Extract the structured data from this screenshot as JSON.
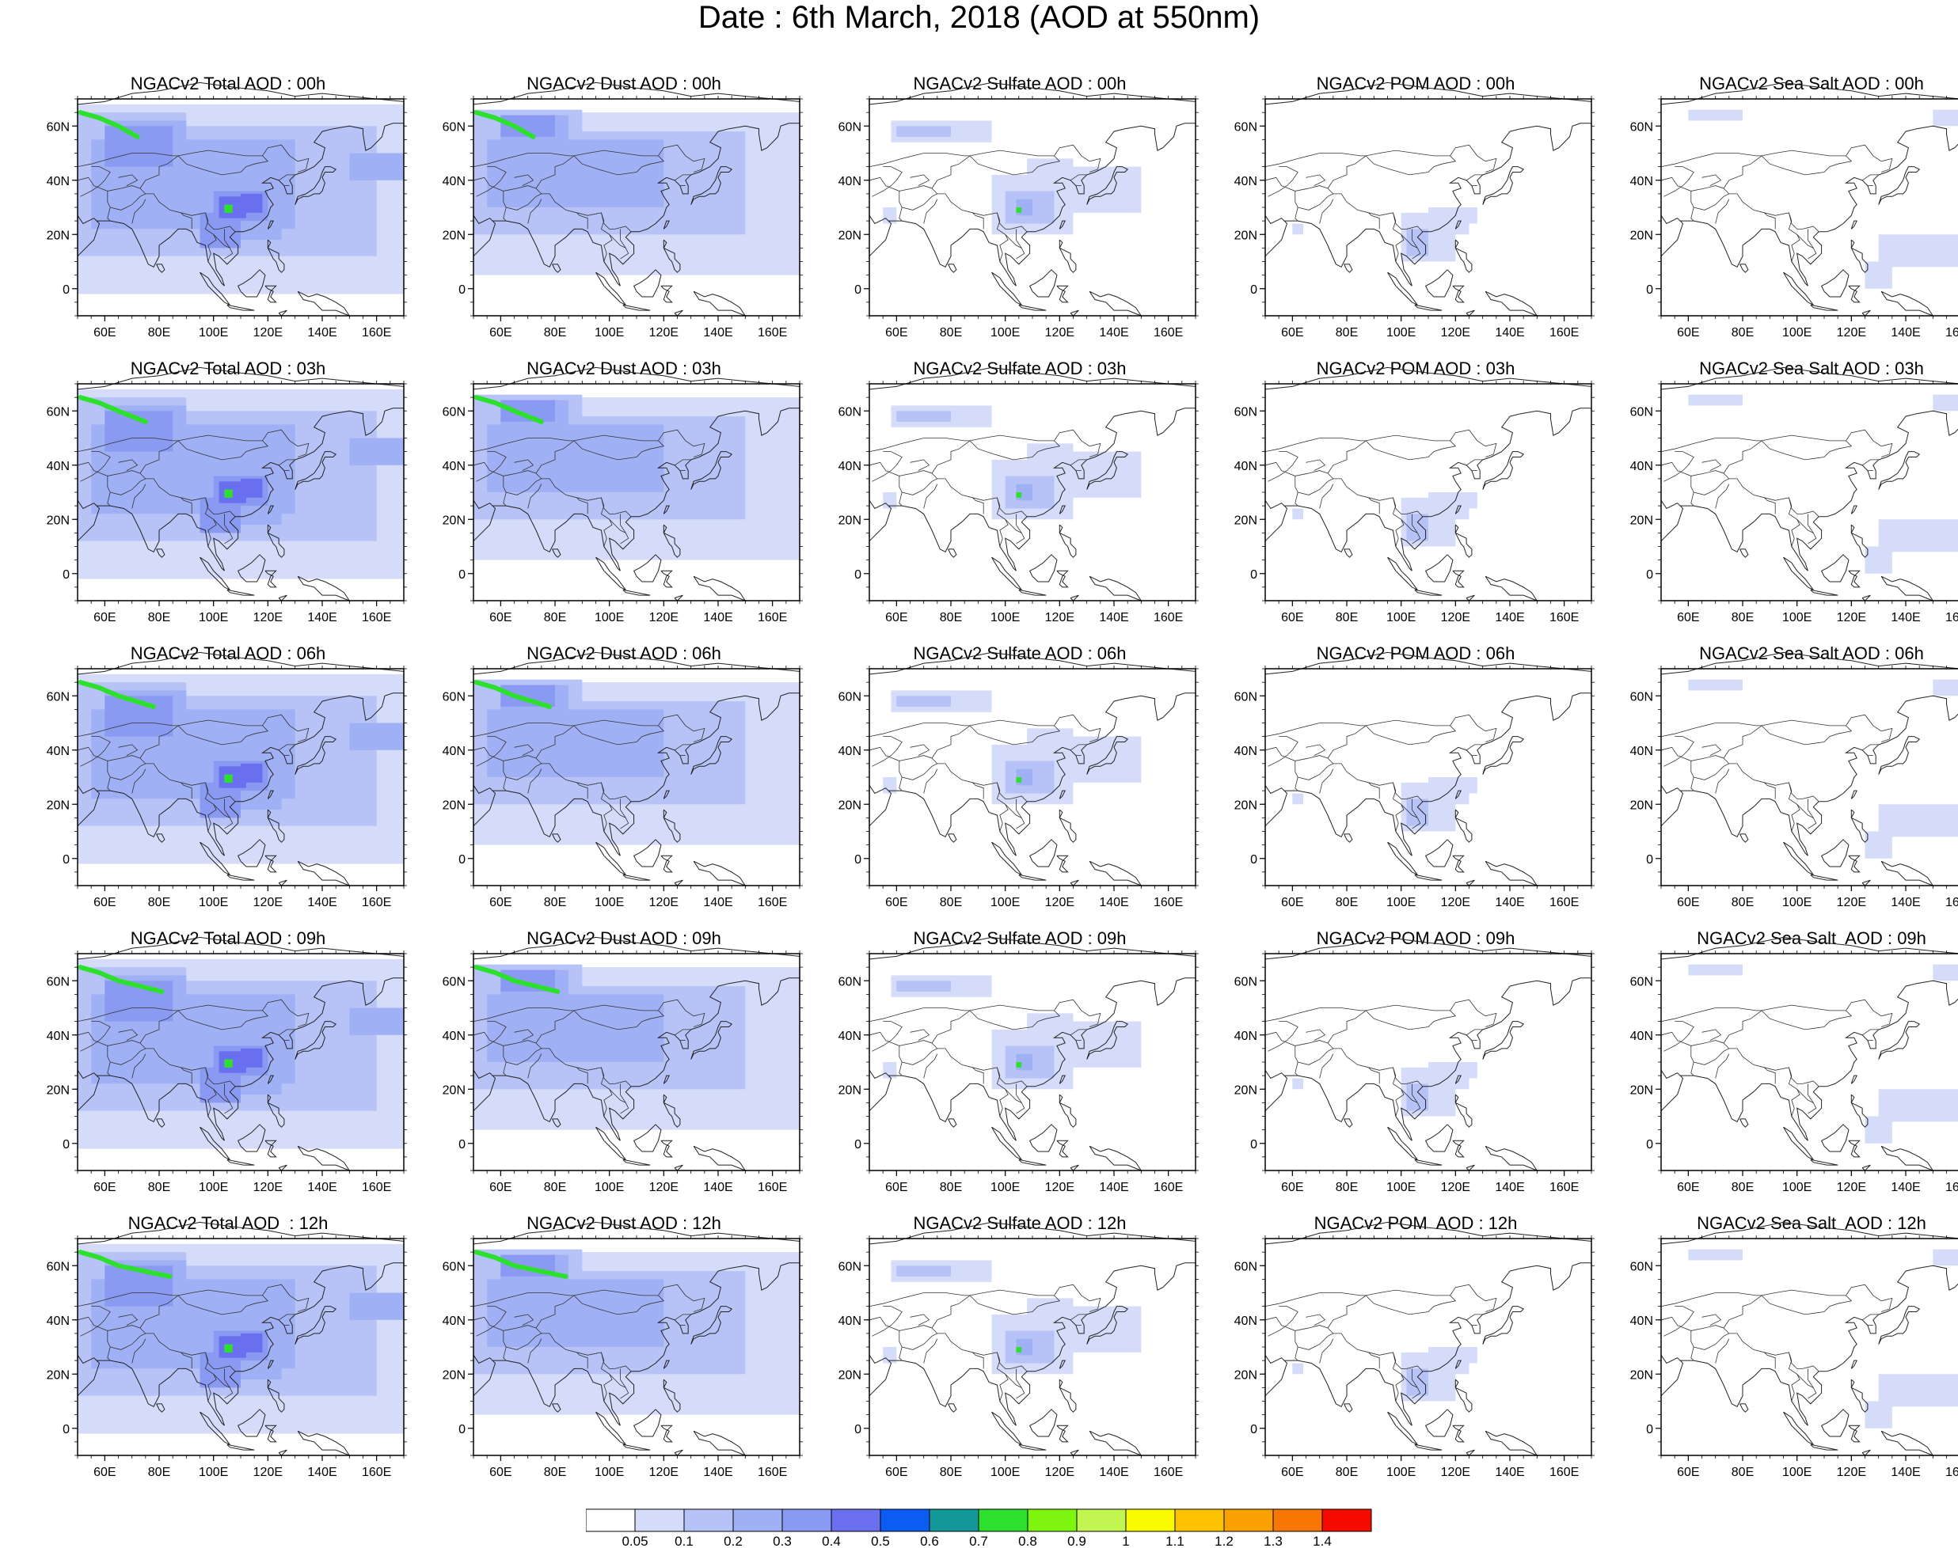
{
  "title": "Date : 6th March, 2018 (AOD at 550nm)",
  "lon_ticks": [
    "60E",
    "80E",
    "100E",
    "120E",
    "140E",
    "160E"
  ],
  "lat_ticks": [
    "60N",
    "40N",
    "20N",
    "0"
  ],
  "map_extent": {
    "lon": [
      50,
      170
    ],
    "lat": [
      -10,
      70
    ]
  },
  "rows": [
    {
      "hour": "00h",
      "titles": [
        "NGACv2 Total AOD : 00h",
        "NGACv2 Dust AOD : 00h",
        "NGACv2 Sulfate AOD : 00h",
        "NGACv2 POM AOD : 00h",
        "NGACv2 Sea Salt AOD : 00h"
      ]
    },
    {
      "hour": "03h",
      "titles": [
        "NGACv2 Total AOD : 03h",
        "NGACv2 Dust AOD : 03h",
        "NGACv2 Sulfate AOD : 03h",
        "NGACv2 POM AOD : 03h",
        "NGACv2 Sea Salt AOD : 03h"
      ]
    },
    {
      "hour": "06h",
      "titles": [
        "NGACv2 Total AOD : 06h",
        "NGACv2 Dust AOD : 06h",
        "NGACv2 Sulfate AOD : 06h",
        "NGACv2 POM AOD : 06h",
        "NGACv2 Sea Salt AOD : 06h"
      ]
    },
    {
      "hour": "09h",
      "titles": [
        "NGACv2 Total AOD : 09h",
        "NGACv2 Dust AOD : 09h",
        "NGACv2 Sulfate AOD : 09h",
        "NGACv2 POM AOD : 09h",
        "NGACv2 Sea Salt  AOD : 09h"
      ]
    },
    {
      "hour": "12h",
      "titles": [
        "NGACv2 Total AOD  : 12h",
        "NGACv2 Dust AOD : 12h",
        "NGACv2 Sulfate AOD : 12h",
        "NGACv2 POM  AOD : 12h",
        "NGACv2 Sea Salt  AOD : 12h"
      ]
    }
  ],
  "columns": [
    "total",
    "dust",
    "sulfate",
    "pom",
    "seasalt"
  ],
  "colorbar": {
    "labels": [
      "0.05",
      "0.1",
      "0.2",
      "0.3",
      "0.4",
      "0.5",
      "0.6",
      "0.7",
      "0.8",
      "0.9",
      "1",
      "1.1",
      "1.2",
      "1.3",
      "1.4"
    ],
    "colors": [
      "#ffffff",
      "#d4dcfa",
      "#b7c3f7",
      "#a0b0f5",
      "#8a9af2",
      "#6a6ff0",
      "#0b5cf2",
      "#13989a",
      "#2ee02e",
      "#7df50f",
      "#c3f550",
      "#fbfb00",
      "#fcc200",
      "#f9a100",
      "#f77606",
      "#f50b00"
    ]
  }
}
